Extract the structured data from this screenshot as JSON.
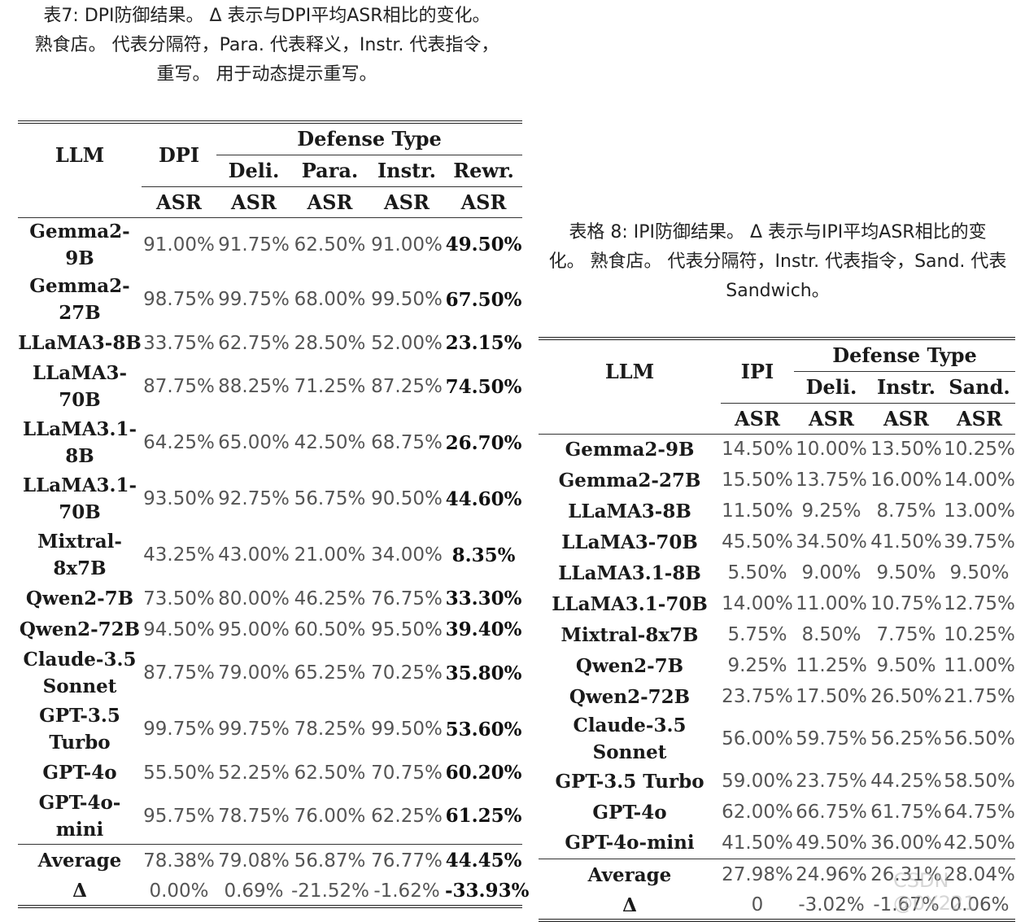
{
  "table7": {
    "caption_line1": "表7:    DPI防御结果。 Δ 表示与DPI平均ASR相比的变化。",
    "caption_line2": "熟食店。 代表分隔符，Para. 代表释义，Instr. 代表指令，",
    "caption_line3": "重写。 用于动态提示重写。",
    "header_llm": "LLM",
    "header_dpi": "DPI",
    "header_defense": "Defense Type",
    "header_cols": [
      "Deli.",
      "Para.",
      "Instr.",
      "Rewr."
    ],
    "header_asr": "ASR",
    "rows": [
      {
        "llm": "Gemma2-9B",
        "v": [
          "91.00%",
          "91.75%",
          "62.50%",
          "91.00%",
          "49.50%"
        ]
      },
      {
        "llm": "Gemma2-27B",
        "v": [
          "98.75%",
          "99.75%",
          "68.00%",
          "99.50%",
          "67.50%"
        ]
      },
      {
        "llm": "LLaMA3-8B",
        "v": [
          "33.75%",
          "62.75%",
          "28.50%",
          "52.00%",
          "23.15%"
        ]
      },
      {
        "llm": "LLaMA3-70B",
        "v": [
          "87.75%",
          "88.25%",
          "71.25%",
          "87.25%",
          "74.50%"
        ]
      },
      {
        "llm": "LLaMA3.1-8B",
        "v": [
          "64.25%",
          "65.00%",
          "42.50%",
          "68.75%",
          "26.70%"
        ]
      },
      {
        "llm": "LLaMA3.1-70B",
        "v": [
          "93.50%",
          "92.75%",
          "56.75%",
          "90.50%",
          "44.60%"
        ]
      },
      {
        "llm": "Mixtral-8x7B",
        "v": [
          "43.25%",
          "43.00%",
          "21.00%",
          "34.00%",
          "8.35%"
        ]
      },
      {
        "llm": "Qwen2-7B",
        "v": [
          "73.50%",
          "80.00%",
          "46.25%",
          "76.75%",
          "33.30%"
        ]
      },
      {
        "llm": "Qwen2-72B",
        "v": [
          "94.50%",
          "95.00%",
          "60.50%",
          "95.50%",
          "39.40%"
        ]
      },
      {
        "llm": "Claude-3.5 Sonnet",
        "v": [
          "87.75%",
          "79.00%",
          "65.25%",
          "70.25%",
          "35.80%"
        ]
      },
      {
        "llm": "GPT-3.5 Turbo",
        "v": [
          "99.75%",
          "99.75%",
          "78.25%",
          "99.50%",
          "53.60%"
        ]
      },
      {
        "llm": "GPT-4o",
        "v": [
          "55.50%",
          "52.25%",
          "62.50%",
          "70.75%",
          "60.20%"
        ]
      },
      {
        "llm": "GPT-4o-mini",
        "v": [
          "95.75%",
          "78.75%",
          "76.00%",
          "62.25%",
          "61.25%"
        ]
      }
    ],
    "average": {
      "llm": "Average",
      "v": [
        "78.38%",
        "79.08%",
        "56.87%",
        "76.77%",
        "44.45%"
      ]
    },
    "delta": {
      "llm": "Δ",
      "v": [
        "0.00%",
        "0.69%",
        "-21.52%",
        "-1.62%",
        "-33.93%"
      ]
    }
  },
  "table8": {
    "caption_line1": "表格 8:   IPI防御结果。 Δ 表示与IPI平均ASR相比的变",
    "caption_line2": "化。 熟食店。 代表分隔符，Instr. 代表指令，Sand. 代表",
    "caption_line3": "Sandwich。",
    "header_llm": "LLM",
    "header_ipi": "IPI",
    "header_defense": "Defense Type",
    "header_cols": [
      "Deli.",
      "Instr.",
      "Sand."
    ],
    "header_asr": "ASR",
    "rows": [
      {
        "llm": "Gemma2-9B",
        "v": [
          "14.50%",
          "10.00%",
          "13.50%",
          "10.25%"
        ]
      },
      {
        "llm": "Gemma2-27B",
        "v": [
          "15.50%",
          "13.75%",
          "16.00%",
          "14.00%"
        ]
      },
      {
        "llm": "LLaMA3-8B",
        "v": [
          "11.50%",
          "9.25%",
          "8.75%",
          "13.00%"
        ]
      },
      {
        "llm": "LLaMA3-70B",
        "v": [
          "45.50%",
          "34.50%",
          "41.50%",
          "39.75%"
        ]
      },
      {
        "llm": "LLaMA3.1-8B",
        "v": [
          "5.50%",
          "9.00%",
          "9.50%",
          "9.50%"
        ]
      },
      {
        "llm": "LLaMA3.1-70B",
        "v": [
          "14.00%",
          "11.00%",
          "10.75%",
          "12.75%"
        ]
      },
      {
        "llm": "Mixtral-8x7B",
        "v": [
          "5.75%",
          "8.50%",
          "7.75%",
          "10.25%"
        ]
      },
      {
        "llm": "Qwen2-7B",
        "v": [
          "9.25%",
          "11.25%",
          "9.50%",
          "11.00%"
        ]
      },
      {
        "llm": "Qwen2-72B",
        "v": [
          "23.75%",
          "17.50%",
          "26.50%",
          "21.75%"
        ]
      },
      {
        "llm": "Claude-3.5 Sonnet",
        "v": [
          "56.00%",
          "59.75%",
          "56.25%",
          "56.50%"
        ]
      },
      {
        "llm": "GPT-3.5 Turbo",
        "v": [
          "59.00%",
          "23.75%",
          "44.25%",
          "58.50%"
        ]
      },
      {
        "llm": "GPT-4o",
        "v": [
          "62.00%",
          "66.75%",
          "61.75%",
          "64.75%"
        ]
      },
      {
        "llm": "GPT-4o-mini",
        "v": [
          "41.50%",
          "49.50%",
          "36.00%",
          "42.50%"
        ]
      }
    ],
    "average": {
      "llm": "Average",
      "v": [
        "27.98%",
        "24.96%",
        "26.31%",
        "28.04%"
      ]
    },
    "delta": {
      "llm": "Δ",
      "v": [
        "0",
        "-3.02%",
        "-1.67%",
        "0.06%"
      ]
    }
  },
  "watermark": "CSDN @0X221"
}
